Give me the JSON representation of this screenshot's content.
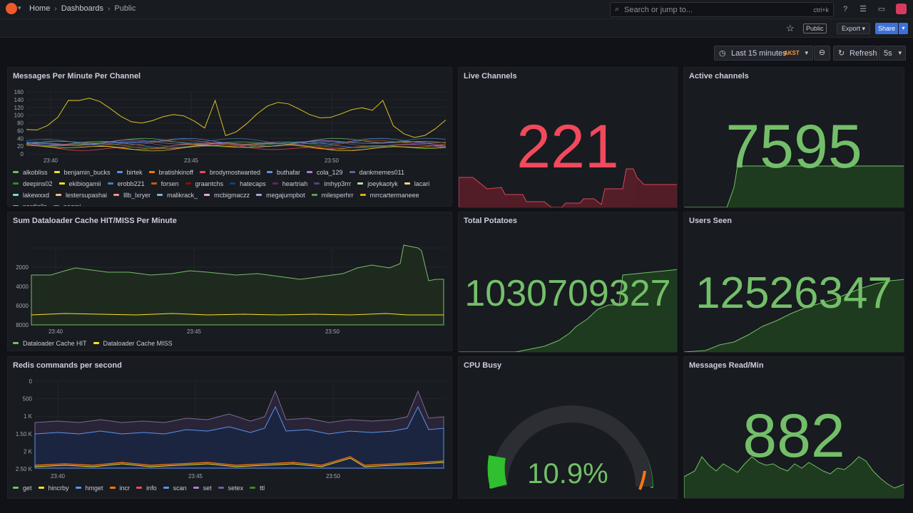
{
  "topbar": {
    "breadcrumbs": [
      "Home",
      "Dashboards",
      "Public"
    ],
    "search_placeholder": "Search or jump to...",
    "search_shortcut": "ctrl+k"
  },
  "toolbar": {
    "public_tag": "Public",
    "export_label": "Export",
    "share_label": "Share"
  },
  "time_controls": {
    "range_label": "Last 15 minutes",
    "timezone": "AKST",
    "refresh_label": "Refresh",
    "interval": "5s"
  },
  "colors": {
    "red": "#f2495c",
    "green": "#73bf69",
    "yellow": "#fade2a",
    "blue": "#5794f2",
    "orange": "#ff9830"
  },
  "panels": {
    "messages_per_minute": {
      "title": "Messages Per Minute Per Channel",
      "legend": [
        {
          "name": "alkobliss",
          "color": "#73bf69"
        },
        {
          "name": "benjamin_bucks",
          "color": "#fade2a"
        },
        {
          "name": "birtek",
          "color": "#5794f2"
        },
        {
          "name": "bratishkinoff",
          "color": "#ff780a"
        },
        {
          "name": "brodymostwanted",
          "color": "#f2495c"
        },
        {
          "name": "buthafar",
          "color": "#5794f2"
        },
        {
          "name": "cola_129",
          "color": "#b877d9"
        },
        {
          "name": "dankmemes011",
          "color": "#705da0"
        },
        {
          "name": "deepins02",
          "color": "#37872d"
        },
        {
          "name": "ekibiogamii",
          "color": "#fade2a"
        },
        {
          "name": "erobb221",
          "color": "#447ebc"
        },
        {
          "name": "forsen",
          "color": "#c15c17"
        },
        {
          "name": "graantchs",
          "color": "#890f02"
        },
        {
          "name": "hatecaps",
          "color": "#0a437c"
        },
        {
          "name": "heartriah",
          "color": "#6d1f62"
        },
        {
          "name": "imhyp3rrr",
          "color": "#584477"
        },
        {
          "name": "joeykaotyk",
          "color": "#b7dbab"
        },
        {
          "name": "lacari",
          "color": "#f4d598"
        },
        {
          "name": "lakewxxd",
          "color": "#70dbed"
        },
        {
          "name": "lestersupashai",
          "color": "#f9ba8f"
        },
        {
          "name": "lllb_lxryer",
          "color": "#f29191"
        },
        {
          "name": "malikrack_",
          "color": "#82b5d8"
        },
        {
          "name": "mcbigmaczz",
          "color": "#e5a8e2"
        },
        {
          "name": "megajumpbot",
          "color": "#aea2e0"
        },
        {
          "name": "milesperhrr",
          "color": "#629e51"
        },
        {
          "name": "mrrcartermaneee",
          "color": "#e5ac0e"
        },
        {
          "name": "nerdiella",
          "color": "#64b0c8"
        },
        {
          "name": "noemi",
          "color": "#e0752d"
        }
      ],
      "y_ticks": [
        "0",
        "20",
        "40",
        "60",
        "80",
        "100",
        "120",
        "140",
        "160"
      ],
      "x_ticks": [
        "23:40",
        "23:45",
        "23:50"
      ]
    },
    "live_channels": {
      "title": "Live Channels",
      "value": "221",
      "color": "#f2495c"
    },
    "active_channels": {
      "title": "Active channels",
      "value": "7595",
      "color": "#73bf69"
    },
    "dataloader": {
      "title": "Sum Dataloader Cache HIT/MISS Per Minute",
      "y_ticks": [
        "2000",
        "4000",
        "6000",
        "8000"
      ],
      "x_ticks": [
        "23:40",
        "23:45",
        "23:50"
      ],
      "legend": [
        {
          "name": "Dataloader Cache HIT",
          "color": "#73bf69"
        },
        {
          "name": "Dataloader Cache MISS",
          "color": "#fade2a"
        }
      ]
    },
    "total_potatoes": {
      "title": "Total Potatoes",
      "value": "1030709327",
      "color": "#73bf69"
    },
    "users_seen": {
      "title": "Users Seen",
      "value": "12526347",
      "color": "#73bf69"
    },
    "redis": {
      "title": "Redis commands per second",
      "y_ticks": [
        "0",
        "500",
        "1 K",
        "1.50 K",
        "2 K",
        "2.50 K"
      ],
      "x_ticks": [
        "23:40",
        "23:45",
        "23:50"
      ],
      "legend": [
        {
          "name": "get",
          "color": "#73bf69"
        },
        {
          "name": "hincrby",
          "color": "#fade2a"
        },
        {
          "name": "hmget",
          "color": "#5794f2"
        },
        {
          "name": "incr",
          "color": "#ff780a"
        },
        {
          "name": "info",
          "color": "#f2495c"
        },
        {
          "name": "scan",
          "color": "#5794f2"
        },
        {
          "name": "set",
          "color": "#b877d9"
        },
        {
          "name": "setex",
          "color": "#705da0"
        },
        {
          "name": "ttl",
          "color": "#37872d"
        }
      ]
    },
    "cpu_busy": {
      "title": "CPU Busy",
      "value": "10.9%",
      "percent": 10.9,
      "color": "#73bf69"
    },
    "messages_read": {
      "title": "Messages Read/Min",
      "value": "882",
      "color": "#73bf69"
    }
  }
}
